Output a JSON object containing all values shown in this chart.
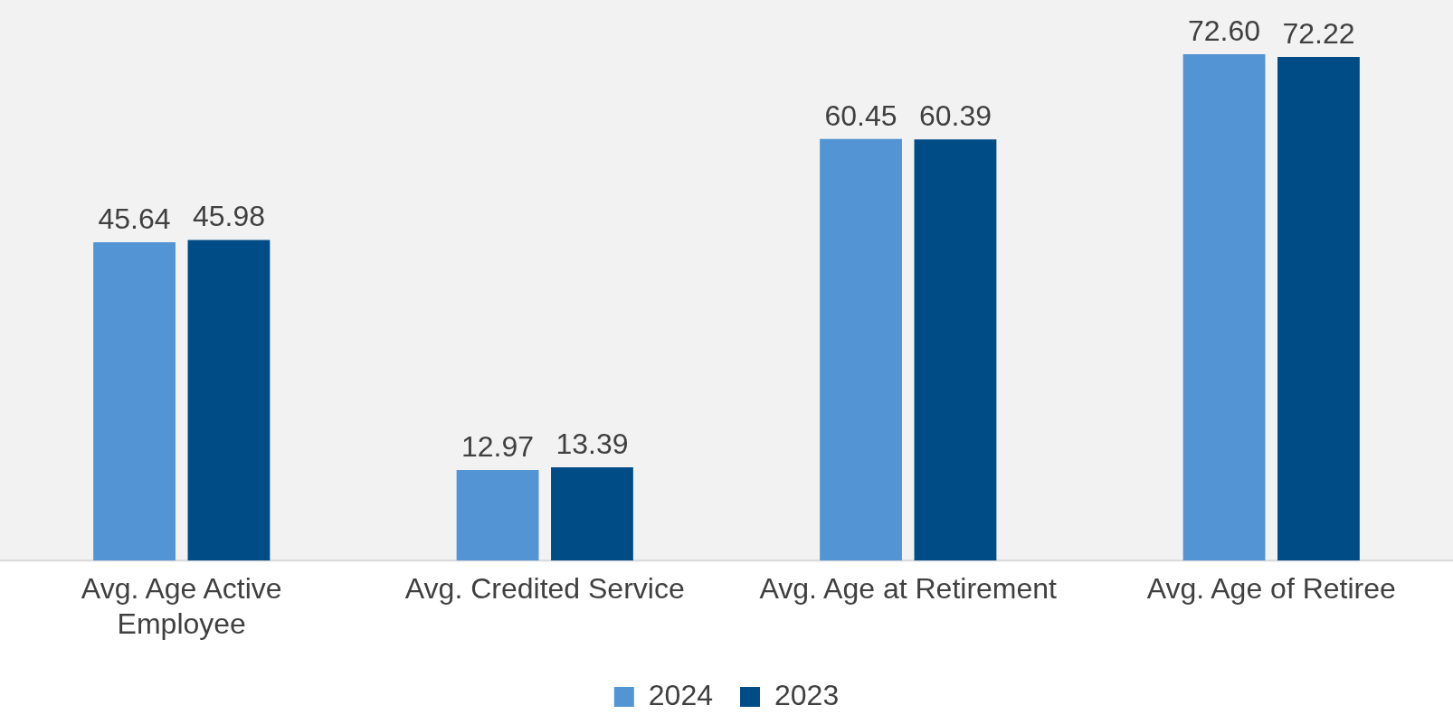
{
  "chart_data": {
    "type": "bar",
    "categories": [
      "Avg. Age Active Employee",
      "Avg. Credited Service",
      "Avg. Age at Retirement",
      "Avg. Age of Retiree"
    ],
    "series": [
      {
        "name": "2024",
        "color": "#5294d4",
        "values": [
          45.64,
          12.97,
          60.45,
          72.6
        ],
        "value_labels": [
          "45.64",
          "12.97",
          "60.45",
          "72.60"
        ]
      },
      {
        "name": "2023",
        "color": "#004c86",
        "values": [
          45.98,
          13.39,
          60.39,
          72.22
        ],
        "value_labels": [
          "45.98",
          "13.39",
          "60.39",
          "72.22"
        ]
      }
    ],
    "legend": "bottom",
    "grid": false,
    "tick_labels": "x"
  }
}
